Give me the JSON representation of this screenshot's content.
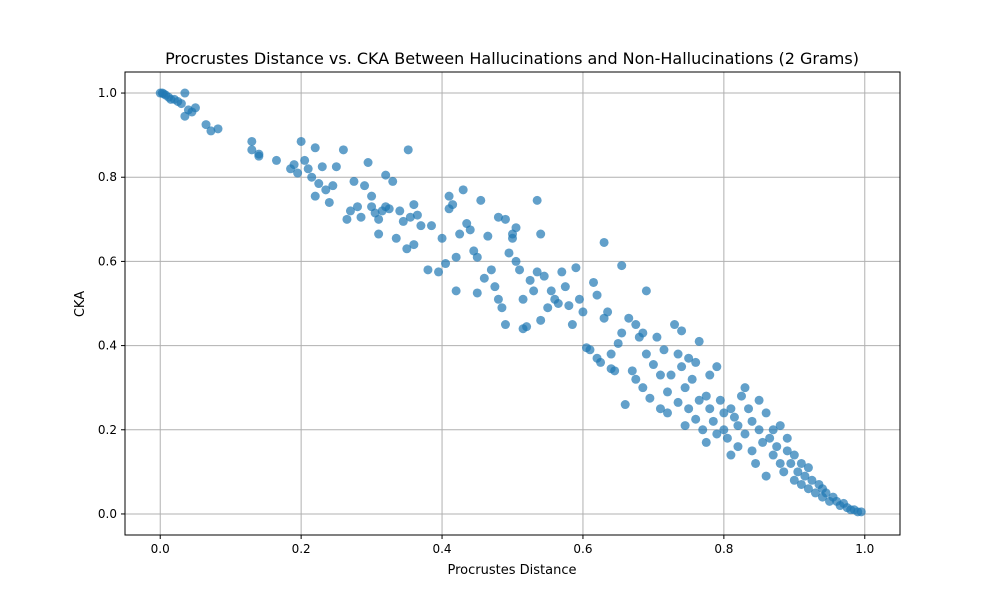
{
  "chart_data": {
    "type": "scatter",
    "title": "Procrustes Distance vs. CKA Between Hallucinations and Non-Hallucinations (2 Grams)",
    "xlabel": "Procrustes Distance",
    "ylabel": "CKA",
    "xlim": [
      -0.05,
      1.05
    ],
    "ylim": [
      -0.05,
      1.05
    ],
    "xticks": [
      0.0,
      0.2,
      0.4,
      0.6,
      0.8,
      1.0
    ],
    "xtick_labels": [
      "0.0",
      "0.2",
      "0.4",
      "0.6",
      "0.8",
      "1.0"
    ],
    "yticks": [
      0.0,
      0.2,
      0.4,
      0.6,
      0.8,
      1.0
    ],
    "ytick_labels": [
      "0.0",
      "0.2",
      "0.4",
      "0.6",
      "0.8",
      "1.0"
    ],
    "grid": true,
    "legend": "none",
    "marker_color": "#1f77b4",
    "marker_alpha": 0.7,
    "points": [
      [
        0.0,
        1.0
      ],
      [
        0.003,
        1.0
      ],
      [
        0.005,
        0.998
      ],
      [
        0.008,
        0.995
      ],
      [
        0.012,
        0.99
      ],
      [
        0.015,
        0.985
      ],
      [
        0.02,
        0.985
      ],
      [
        0.025,
        0.98
      ],
      [
        0.03,
        0.975
      ],
      [
        0.035,
        1.0
      ],
      [
        0.04,
        0.96
      ],
      [
        0.045,
        0.955
      ],
      [
        0.05,
        0.965
      ],
      [
        0.035,
        0.945
      ],
      [
        0.065,
        0.925
      ],
      [
        0.072,
        0.91
      ],
      [
        0.082,
        0.915
      ],
      [
        0.13,
        0.885
      ],
      [
        0.13,
        0.865
      ],
      [
        0.14,
        0.855
      ],
      [
        0.14,
        0.85
      ],
      [
        0.165,
        0.84
      ],
      [
        0.185,
        0.82
      ],
      [
        0.19,
        0.83
      ],
      [
        0.195,
        0.81
      ],
      [
        0.2,
        0.885
      ],
      [
        0.205,
        0.84
      ],
      [
        0.21,
        0.82
      ],
      [
        0.215,
        0.8
      ],
      [
        0.22,
        0.87
      ],
      [
        0.22,
        0.755
      ],
      [
        0.225,
        0.785
      ],
      [
        0.23,
        0.825
      ],
      [
        0.235,
        0.77
      ],
      [
        0.24,
        0.74
      ],
      [
        0.245,
        0.78
      ],
      [
        0.25,
        0.825
      ],
      [
        0.26,
        0.865
      ],
      [
        0.265,
        0.7
      ],
      [
        0.27,
        0.72
      ],
      [
        0.275,
        0.79
      ],
      [
        0.28,
        0.73
      ],
      [
        0.285,
        0.705
      ],
      [
        0.29,
        0.78
      ],
      [
        0.295,
        0.835
      ],
      [
        0.3,
        0.755
      ],
      [
        0.3,
        0.73
      ],
      [
        0.305,
        0.715
      ],
      [
        0.31,
        0.7
      ],
      [
        0.31,
        0.665
      ],
      [
        0.315,
        0.72
      ],
      [
        0.32,
        0.805
      ],
      [
        0.32,
        0.73
      ],
      [
        0.325,
        0.725
      ],
      [
        0.33,
        0.79
      ],
      [
        0.335,
        0.655
      ],
      [
        0.34,
        0.72
      ],
      [
        0.345,
        0.695
      ],
      [
        0.35,
        0.63
      ],
      [
        0.352,
        0.865
      ],
      [
        0.355,
        0.705
      ],
      [
        0.36,
        0.735
      ],
      [
        0.36,
        0.64
      ],
      [
        0.365,
        0.71
      ],
      [
        0.37,
        0.685
      ],
      [
        0.38,
        0.58
      ],
      [
        0.385,
        0.685
      ],
      [
        0.395,
        0.575
      ],
      [
        0.4,
        0.655
      ],
      [
        0.405,
        0.595
      ],
      [
        0.41,
        0.755
      ],
      [
        0.41,
        0.725
      ],
      [
        0.415,
        0.735
      ],
      [
        0.42,
        0.53
      ],
      [
        0.42,
        0.61
      ],
      [
        0.425,
        0.665
      ],
      [
        0.43,
        0.77
      ],
      [
        0.435,
        0.69
      ],
      [
        0.44,
        0.675
      ],
      [
        0.445,
        0.625
      ],
      [
        0.45,
        0.61
      ],
      [
        0.45,
        0.525
      ],
      [
        0.455,
        0.745
      ],
      [
        0.46,
        0.56
      ],
      [
        0.465,
        0.66
      ],
      [
        0.47,
        0.58
      ],
      [
        0.475,
        0.54
      ],
      [
        0.48,
        0.51
      ],
      [
        0.48,
        0.705
      ],
      [
        0.485,
        0.49
      ],
      [
        0.49,
        0.45
      ],
      [
        0.49,
        0.7
      ],
      [
        0.495,
        0.62
      ],
      [
        0.5,
        0.665
      ],
      [
        0.5,
        0.655
      ],
      [
        0.505,
        0.68
      ],
      [
        0.505,
        0.6
      ],
      [
        0.51,
        0.58
      ],
      [
        0.515,
        0.44
      ],
      [
        0.515,
        0.51
      ],
      [
        0.52,
        0.445
      ],
      [
        0.525,
        0.555
      ],
      [
        0.53,
        0.53
      ],
      [
        0.535,
        0.745
      ],
      [
        0.535,
        0.575
      ],
      [
        0.54,
        0.665
      ],
      [
        0.54,
        0.46
      ],
      [
        0.545,
        0.565
      ],
      [
        0.55,
        0.49
      ],
      [
        0.555,
        0.53
      ],
      [
        0.56,
        0.51
      ],
      [
        0.565,
        0.5
      ],
      [
        0.57,
        0.575
      ],
      [
        0.575,
        0.54
      ],
      [
        0.58,
        0.495
      ],
      [
        0.585,
        0.45
      ],
      [
        0.59,
        0.585
      ],
      [
        0.595,
        0.51
      ],
      [
        0.6,
        0.48
      ],
      [
        0.605,
        0.395
      ],
      [
        0.61,
        0.39
      ],
      [
        0.615,
        0.55
      ],
      [
        0.62,
        0.37
      ],
      [
        0.62,
        0.52
      ],
      [
        0.625,
        0.36
      ],
      [
        0.63,
        0.645
      ],
      [
        0.63,
        0.465
      ],
      [
        0.635,
        0.48
      ],
      [
        0.64,
        0.38
      ],
      [
        0.64,
        0.345
      ],
      [
        0.645,
        0.34
      ],
      [
        0.65,
        0.405
      ],
      [
        0.655,
        0.59
      ],
      [
        0.655,
        0.43
      ],
      [
        0.66,
        0.26
      ],
      [
        0.665,
        0.465
      ],
      [
        0.67,
        0.34
      ],
      [
        0.675,
        0.32
      ],
      [
        0.675,
        0.45
      ],
      [
        0.68,
        0.42
      ],
      [
        0.685,
        0.3
      ],
      [
        0.685,
        0.43
      ],
      [
        0.69,
        0.38
      ],
      [
        0.69,
        0.53
      ],
      [
        0.695,
        0.275
      ],
      [
        0.7,
        0.355
      ],
      [
        0.705,
        0.42
      ],
      [
        0.71,
        0.33
      ],
      [
        0.71,
        0.25
      ],
      [
        0.715,
        0.39
      ],
      [
        0.72,
        0.29
      ],
      [
        0.72,
        0.24
      ],
      [
        0.725,
        0.33
      ],
      [
        0.73,
        0.45
      ],
      [
        0.735,
        0.38
      ],
      [
        0.735,
        0.265
      ],
      [
        0.74,
        0.435
      ],
      [
        0.74,
        0.35
      ],
      [
        0.745,
        0.3
      ],
      [
        0.745,
        0.21
      ],
      [
        0.75,
        0.25
      ],
      [
        0.75,
        0.37
      ],
      [
        0.755,
        0.32
      ],
      [
        0.76,
        0.36
      ],
      [
        0.76,
        0.225
      ],
      [
        0.765,
        0.41
      ],
      [
        0.765,
        0.27
      ],
      [
        0.77,
        0.2
      ],
      [
        0.775,
        0.28
      ],
      [
        0.775,
        0.17
      ],
      [
        0.78,
        0.33
      ],
      [
        0.78,
        0.25
      ],
      [
        0.785,
        0.22
      ],
      [
        0.79,
        0.35
      ],
      [
        0.79,
        0.19
      ],
      [
        0.795,
        0.27
      ],
      [
        0.8,
        0.24
      ],
      [
        0.8,
        0.2
      ],
      [
        0.805,
        0.18
      ],
      [
        0.81,
        0.25
      ],
      [
        0.81,
        0.14
      ],
      [
        0.815,
        0.23
      ],
      [
        0.82,
        0.21
      ],
      [
        0.82,
        0.16
      ],
      [
        0.825,
        0.28
      ],
      [
        0.83,
        0.19
      ],
      [
        0.83,
        0.3
      ],
      [
        0.835,
        0.25
      ],
      [
        0.84,
        0.22
      ],
      [
        0.84,
        0.15
      ],
      [
        0.845,
        0.12
      ],
      [
        0.85,
        0.2
      ],
      [
        0.85,
        0.27
      ],
      [
        0.855,
        0.17
      ],
      [
        0.86,
        0.09
      ],
      [
        0.86,
        0.24
      ],
      [
        0.865,
        0.18
      ],
      [
        0.87,
        0.14
      ],
      [
        0.87,
        0.2
      ],
      [
        0.875,
        0.16
      ],
      [
        0.88,
        0.12
      ],
      [
        0.88,
        0.21
      ],
      [
        0.885,
        0.1
      ],
      [
        0.89,
        0.15
      ],
      [
        0.89,
        0.18
      ],
      [
        0.895,
        0.12
      ],
      [
        0.9,
        0.08
      ],
      [
        0.9,
        0.14
      ],
      [
        0.905,
        0.1
      ],
      [
        0.91,
        0.12
      ],
      [
        0.91,
        0.07
      ],
      [
        0.915,
        0.09
      ],
      [
        0.92,
        0.06
      ],
      [
        0.92,
        0.11
      ],
      [
        0.925,
        0.08
      ],
      [
        0.93,
        0.05
      ],
      [
        0.935,
        0.07
      ],
      [
        0.94,
        0.06
      ],
      [
        0.94,
        0.04
      ],
      [
        0.945,
        0.05
      ],
      [
        0.95,
        0.03
      ],
      [
        0.955,
        0.04
      ],
      [
        0.96,
        0.03
      ],
      [
        0.965,
        0.02
      ],
      [
        0.97,
        0.025
      ],
      [
        0.975,
        0.015
      ],
      [
        0.98,
        0.01
      ],
      [
        0.985,
        0.01
      ],
      [
        0.99,
        0.005
      ],
      [
        0.995,
        0.005
      ]
    ]
  }
}
